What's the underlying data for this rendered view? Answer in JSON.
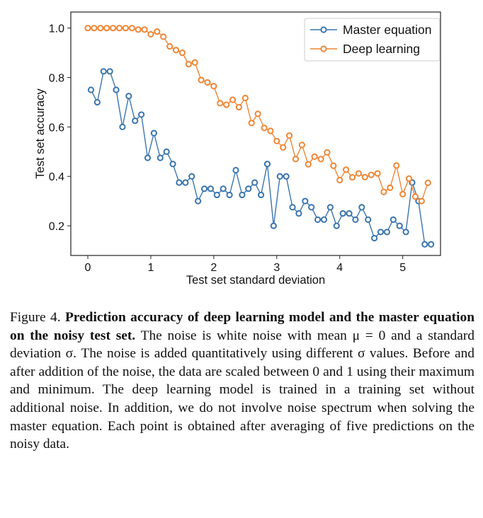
{
  "chart_data": {
    "type": "line",
    "xlabel": "Test set standard deviation",
    "ylabel": "Test set accuracy",
    "xlim": [
      -0.27,
      5.6
    ],
    "ylim": [
      0.08,
      1.065
    ],
    "xticks": [
      0,
      1,
      2,
      3,
      4,
      5
    ],
    "yticks": [
      0.2,
      0.4,
      0.6,
      0.8,
      1.0
    ],
    "ytick_labels": [
      "0.2",
      "0.4",
      "0.6",
      "0.8",
      "1.0"
    ],
    "grid": false,
    "legend_placement": "top-right",
    "series": [
      {
        "name": "Master equation",
        "color": "#3b75af",
        "marker": "open-circle",
        "x": [
          0.05,
          0.15,
          0.25,
          0.35,
          0.45,
          0.55,
          0.65,
          0.75,
          0.85,
          0.95,
          1.05,
          1.15,
          1.25,
          1.35,
          1.45,
          1.55,
          1.65,
          1.75,
          1.85,
          1.95,
          2.05,
          2.15,
          2.25,
          2.35,
          2.45,
          2.55,
          2.65,
          2.75,
          2.85,
          2.95,
          3.05,
          3.15,
          3.25,
          3.35,
          3.45,
          3.55,
          3.65,
          3.75,
          3.85,
          3.95,
          4.05,
          4.15,
          4.25,
          4.35,
          4.45,
          4.55,
          4.65,
          4.75,
          4.85,
          4.95,
          5.05,
          5.15,
          5.25,
          5.35,
          5.45
        ],
        "y": [
          0.75,
          0.7,
          0.825,
          0.825,
          0.75,
          0.6,
          0.725,
          0.625,
          0.65,
          0.475,
          0.575,
          0.475,
          0.5,
          0.45,
          0.375,
          0.375,
          0.4,
          0.3,
          0.35,
          0.35,
          0.325,
          0.35,
          0.325,
          0.425,
          0.325,
          0.35,
          0.375,
          0.325,
          0.45,
          0.2,
          0.4,
          0.4,
          0.275,
          0.25,
          0.3,
          0.275,
          0.225,
          0.225,
          0.275,
          0.2,
          0.25,
          0.25,
          0.225,
          0.275,
          0.225,
          0.15,
          0.175,
          0.175,
          0.225,
          0.2,
          0.175,
          0.375,
          0.3,
          0.125,
          0.125
        ]
      },
      {
        "name": "Deep learning",
        "color": "#ef8636",
        "marker": "open-circle",
        "x": [
          0,
          0.1,
          0.2,
          0.3,
          0.4,
          0.5,
          0.6,
          0.7,
          0.8,
          0.9,
          1.0,
          1.1,
          1.2,
          1.3,
          1.4,
          1.5,
          1.6,
          1.7,
          1.8,
          1.9,
          2.0,
          2.1,
          2.2,
          2.3,
          2.4,
          2.5,
          2.6,
          2.7,
          2.8,
          2.9,
          3.0,
          3.1,
          3.2,
          3.3,
          3.4,
          3.5,
          3.6,
          3.7,
          3.8,
          3.9,
          4.0,
          4.1,
          4.2,
          4.3,
          4.4,
          4.5,
          4.6,
          4.7,
          4.8,
          4.9,
          5.0,
          5.1,
          5.2,
          5.3,
          5.4
        ],
        "y": [
          1.0,
          1.0,
          1.0,
          1.0,
          1.0,
          1.0,
          1.0,
          1.0,
          0.994,
          0.994,
          0.975,
          0.986,
          0.965,
          0.926,
          0.911,
          0.9,
          0.854,
          0.861,
          0.79,
          0.78,
          0.765,
          0.696,
          0.69,
          0.71,
          0.68,
          0.717,
          0.616,
          0.653,
          0.596,
          0.584,
          0.543,
          0.517,
          0.565,
          0.47,
          0.527,
          0.449,
          0.48,
          0.47,
          0.497,
          0.443,
          0.385,
          0.427,
          0.396,
          0.412,
          0.397,
          0.406,
          0.412,
          0.337,
          0.354,
          0.444,
          0.328,
          0.391,
          0.318,
          0.3,
          0.374
        ]
      }
    ]
  },
  "caption": {
    "label": "Figure 4.",
    "title": "Prediction accuracy of deep learning model and the master equation on the noisy test set.",
    "body": "The noise is white noise with mean μ = 0 and a standard deviation σ. The noise is added quantitatively using different σ values. Before and after addition of the noise, the data are scaled between 0 and 1 using their maximum and minimum. The deep learning model is trained in a training set without additional noise. In addition, we do not involve noise spectrum when solving the master equation. Each point is obtained after averaging of five predictions on the noisy data."
  }
}
